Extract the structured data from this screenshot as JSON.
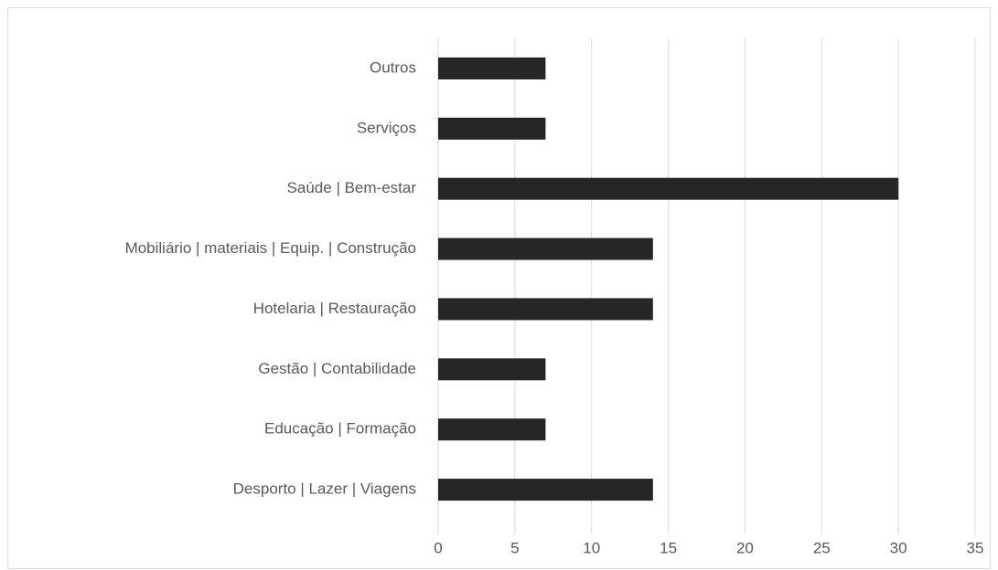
{
  "chart_data": {
    "type": "bar",
    "orientation": "horizontal",
    "categories": [
      "Desporto | Lazer | Viagens",
      "Educação | Formação",
      "Gestão | Contabilidade",
      "Hotelaria | Restauração",
      "Mobiliário | materiais | Equip. | Construção",
      "Saúde | Bem-estar",
      "Serviços",
      "Outros"
    ],
    "values": [
      14,
      7,
      7,
      14,
      14,
      30,
      7,
      7
    ],
    "color": "#262626",
    "xlim": [
      0,
      35
    ],
    "xticks": [
      0,
      5,
      10,
      15,
      20,
      25,
      30,
      35
    ],
    "grid": true
  }
}
